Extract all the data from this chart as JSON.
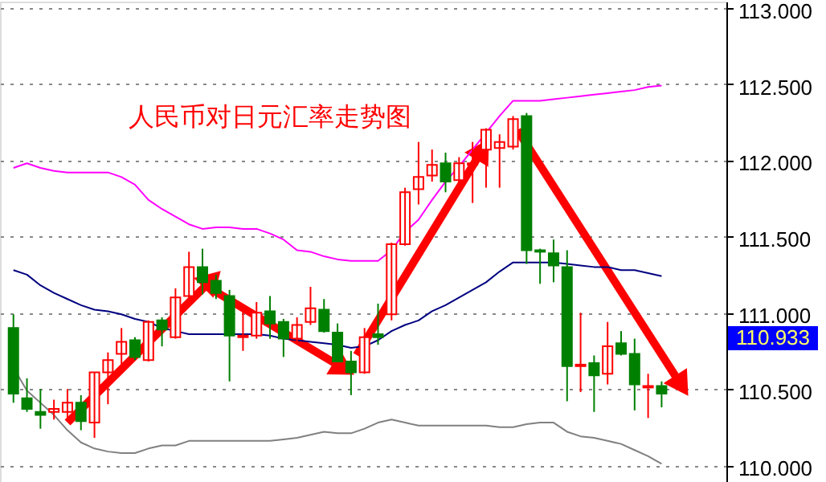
{
  "chart_data": {
    "type": "candlestick",
    "title": "人民币对日元汇率走势图",
    "categories": [
      null,
      null,
      null,
      null,
      null,
      null,
      null,
      null,
      null,
      null,
      null,
      null,
      null,
      null,
      null,
      null,
      null,
      null,
      null,
      null,
      null,
      null,
      null,
      null,
      null,
      null,
      null,
      null,
      null,
      null,
      null,
      null,
      null,
      null,
      null,
      null,
      null,
      null,
      null,
      null,
      null,
      null,
      null,
      null,
      null,
      null,
      null,
      null,
      null
    ],
    "ohlc": [
      [
        110.9,
        110.99,
        110.41,
        110.47
      ],
      [
        110.44,
        110.57,
        110.35,
        110.37
      ],
      [
        110.35,
        110.5,
        110.24,
        110.33
      ],
      [
        110.35,
        110.43,
        110.3,
        110.37
      ],
      [
        110.35,
        110.5,
        110.3,
        110.41
      ],
      [
        110.41,
        110.46,
        110.23,
        110.29
      ],
      [
        110.28,
        110.61,
        110.18,
        110.61
      ],
      [
        110.61,
        110.74,
        110.4,
        110.69
      ],
      [
        110.73,
        110.9,
        110.61,
        110.81
      ],
      [
        110.82,
        110.84,
        110.69,
        110.71
      ],
      [
        110.69,
        110.95,
        110.68,
        110.94
      ],
      [
        110.95,
        110.97,
        110.78,
        110.89
      ],
      [
        110.84,
        111.16,
        110.83,
        111.1
      ],
      [
        111.11,
        111.4,
        111.09,
        111.3
      ],
      [
        111.3,
        111.42,
        111.12,
        111.2
      ],
      [
        111.21,
        111.25,
        111.09,
        111.13
      ],
      [
        111.11,
        111.15,
        110.55,
        110.85
      ],
      [
        110.84,
        111.01,
        110.75,
        110.85
      ],
      [
        110.85,
        111.07,
        110.83,
        111.0
      ],
      [
        111.01,
        111.11,
        110.83,
        110.93
      ],
      [
        110.94,
        110.96,
        110.71,
        110.83
      ],
      [
        110.83,
        110.97,
        110.81,
        110.92
      ],
      [
        110.94,
        111.17,
        110.92,
        111.03
      ],
      [
        111.02,
        111.09,
        110.87,
        110.88
      ],
      [
        110.87,
        110.93,
        110.68,
        110.68
      ],
      [
        110.68,
        110.75,
        110.46,
        110.61
      ],
      [
        110.61,
        110.9,
        110.6,
        110.84
      ],
      [
        110.86,
        111.06,
        110.79,
        110.84
      ],
      [
        110.99,
        111.46,
        110.95,
        111.45
      ],
      [
        111.45,
        111.82,
        111.44,
        111.79
      ],
      [
        111.81,
        112.12,
        111.71,
        111.89
      ],
      [
        111.9,
        112.07,
        111.86,
        111.97
      ],
      [
        111.98,
        112.05,
        111.79,
        111.86
      ],
      [
        111.87,
        112.02,
        111.79,
        111.98
      ],
      [
        111.97,
        112.12,
        111.72,
        111.98
      ],
      [
        112.07,
        112.21,
        111.82,
        112.2
      ],
      [
        112.08,
        112.17,
        111.82,
        112.12
      ],
      [
        112.09,
        112.29,
        112.07,
        112.27
      ],
      [
        112.29,
        112.31,
        111.32,
        111.41
      ],
      [
        111.41,
        111.42,
        111.19,
        111.4
      ],
      [
        111.39,
        111.48,
        111.2,
        111.31
      ],
      [
        111.3,
        111.41,
        110.42,
        110.65
      ],
      [
        110.65,
        111.0,
        110.48,
        110.66
      ],
      [
        110.67,
        110.72,
        110.35,
        110.59
      ],
      [
        110.6,
        110.94,
        110.53,
        110.78
      ],
      [
        110.8,
        110.88,
        110.72,
        110.73
      ],
      [
        110.73,
        110.83,
        110.36,
        110.53
      ],
      [
        110.51,
        110.6,
        110.31,
        110.52
      ],
      [
        110.52,
        110.55,
        110.38,
        110.47
      ]
    ],
    "colors": [
      "#008000",
      "#008000",
      "#008000",
      "#ff0000",
      "#ff0000",
      "#008000",
      "#ff0000",
      "#ff0000",
      "#ff0000",
      "#008000",
      "#ff0000",
      "#008000",
      "#ff0000",
      "#ff0000",
      "#008000",
      "#008000",
      "#008000",
      "#ff0000",
      "#ff0000",
      "#008000",
      "#008000",
      "#ff0000",
      "#ff0000",
      "#008000",
      "#008000",
      "#008000",
      "#ff0000",
      "#008000",
      "#ff0000",
      "#ff0000",
      "#ff0000",
      "#ff0000",
      "#008000",
      "#ff0000",
      "#ff0000",
      "#ff0000",
      "#ff0000",
      "#ff0000",
      "#008000",
      "#008000",
      "#008000",
      "#008000",
      "#ff0000",
      "#008000",
      "#ff0000",
      "#008000",
      "#008000",
      "#ff0000",
      "#008000"
    ],
    "series": [
      {
        "type": "line",
        "color": "#ff00ff",
        "values": [
          111.95,
          111.98,
          111.95,
          111.93,
          111.92,
          111.92,
          111.92,
          111.92,
          111.89,
          111.84,
          111.74,
          111.68,
          111.63,
          111.58,
          111.55,
          111.56,
          111.56,
          111.55,
          111.55,
          111.52,
          111.48,
          111.41,
          111.4,
          111.37,
          111.35,
          111.34,
          111.34,
          111.34,
          111.41,
          111.53,
          111.61,
          111.74,
          111.86,
          111.96,
          112.07,
          112.18,
          112.29,
          112.39,
          112.39,
          112.39,
          112.4,
          112.41,
          112.42,
          112.43,
          112.44,
          112.45,
          112.46,
          112.48,
          112.49
        ]
      },
      {
        "type": "line",
        "color": "#000080",
        "values": [
          111.28,
          111.25,
          111.18,
          111.13,
          111.09,
          111.05,
          111.02,
          111.01,
          110.99,
          110.96,
          110.94,
          110.9,
          110.88,
          110.86,
          110.86,
          110.86,
          110.86,
          110.86,
          110.86,
          110.85,
          110.83,
          110.82,
          110.81,
          110.8,
          110.79,
          110.77,
          110.78,
          110.82,
          110.88,
          110.92,
          110.95,
          111.01,
          111.05,
          111.1,
          111.15,
          111.2,
          111.27,
          111.33,
          111.33,
          111.33,
          111.33,
          111.32,
          111.31,
          111.3,
          111.3,
          111.28,
          111.28,
          111.26,
          111.24
        ]
      },
      {
        "type": "line",
        "color": "#808080",
        "values": [
          110.64,
          110.49,
          110.41,
          110.33,
          110.23,
          110.15,
          110.11,
          110.09,
          110.08,
          110.08,
          110.11,
          110.13,
          110.13,
          110.16,
          110.16,
          110.16,
          110.16,
          110.16,
          110.16,
          110.16,
          110.17,
          110.18,
          110.2,
          110.22,
          110.21,
          110.21,
          110.24,
          110.28,
          110.3,
          110.28,
          110.26,
          110.26,
          110.26,
          110.26,
          110.26,
          110.26,
          110.25,
          110.25,
          110.27,
          110.28,
          110.28,
          110.22,
          110.19,
          110.18,
          110.16,
          110.14,
          110.1,
          110.06,
          110.01
        ]
      }
    ],
    "ylim": [
      109.88,
      113.04
    ],
    "yticks": [
      {
        "value": 110.0,
        "label": "110.000"
      },
      {
        "value": 110.5,
        "label": "110.500"
      },
      {
        "value": 111.0,
        "label": "111.000"
      },
      {
        "value": 111.5,
        "label": "111.500"
      },
      {
        "value": 112.0,
        "label": "112.000"
      },
      {
        "value": 112.5,
        "label": "112.500"
      },
      {
        "value": 113.0,
        "label": "113.000"
      }
    ],
    "annotations": [
      "110.933"
    ],
    "grid": "y",
    "tick_labels": "y",
    "marker": "none",
    "line_style": "solid"
  }
}
